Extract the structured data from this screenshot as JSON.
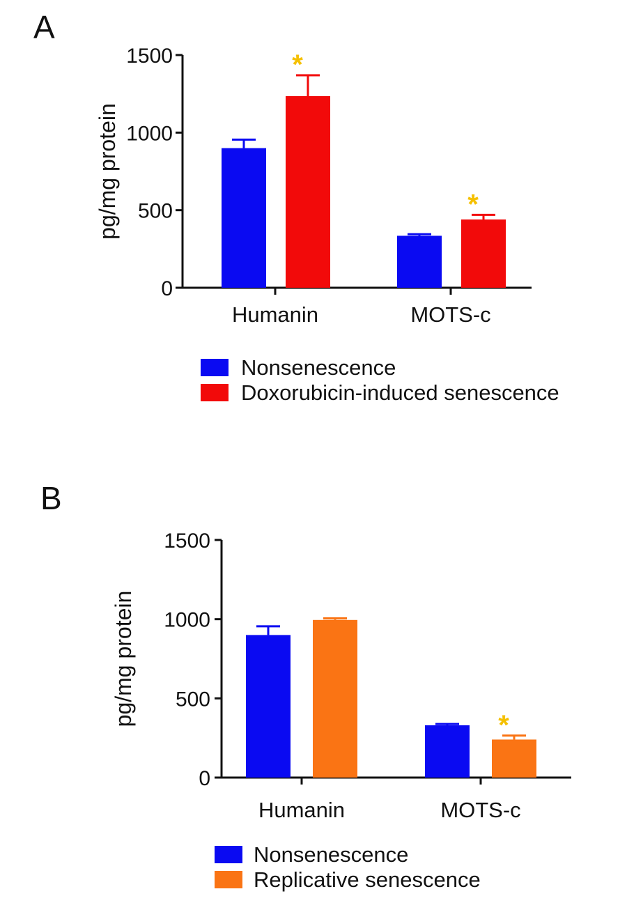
{
  "chart_data": [
    {
      "type": "bar",
      "panel": "A",
      "categories": [
        "Humanin",
        "MOTS-c"
      ],
      "series": [
        {
          "name": "Nonsenescence",
          "color": "#0a0af2",
          "values": [
            900,
            335
          ],
          "errors": [
            55,
            10
          ]
        },
        {
          "name": "Doxorubicin-induced senescence",
          "color": "#f20a0a",
          "values": [
            1235,
            440
          ],
          "errors": [
            135,
            30
          ]
        }
      ],
      "significance": [
        {
          "category": "Humanin",
          "series": "Doxorubicin-induced senescence",
          "label": "*"
        },
        {
          "category": "MOTS-c",
          "series": "Doxorubicin-induced senescence",
          "label": "*"
        }
      ],
      "sig_color": "#f5c000",
      "ylabel": "pg/mg protein",
      "ylim": [
        0,
        1500
      ],
      "yticks": [
        0,
        500,
        1000,
        1500
      ],
      "legend": [
        "Nonsenescence",
        "Doxorubicin-induced senescence"
      ]
    },
    {
      "type": "bar",
      "panel": "B",
      "categories": [
        "Humanin",
        "MOTS-c"
      ],
      "series": [
        {
          "name": "Nonsenescence",
          "color": "#0a0af2",
          "values": [
            900,
            330
          ],
          "errors": [
            55,
            8
          ]
        },
        {
          "name": "Replicative senescence",
          "color": "#fa7414",
          "values": [
            995,
            240
          ],
          "errors": [
            10,
            25
          ]
        }
      ],
      "significance": [
        {
          "category": "MOTS-c",
          "series": "Replicative senescence",
          "label": "*"
        }
      ],
      "sig_color": "#f5c000",
      "ylabel": "pg/mg protein",
      "ylim": [
        0,
        1500
      ],
      "yticks": [
        0,
        500,
        1000,
        1500
      ],
      "legend": [
        "Nonsenescence",
        "Replicative senescence"
      ]
    }
  ]
}
